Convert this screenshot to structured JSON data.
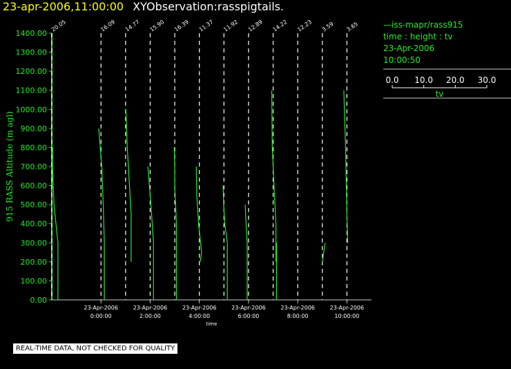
{
  "header": {
    "timestamp": "23-apr-2006,11:00:00",
    "title": "XYObservation:rasspigtails."
  },
  "legend": {
    "series": "iss-mapr/rass915",
    "desc": "time : height : tv",
    "date": "23-Apr-2006",
    "time": "10:00:50",
    "scale_ticks": [
      "0.0",
      "10.0",
      "20.0",
      "30.0"
    ],
    "scale_label": "tv"
  },
  "footer": {
    "notice": "REAL-TIME DATA, NOT CHECKED FOR QUALITY"
  },
  "colors": {
    "trace": "#22ee22",
    "axis": "#22ee22",
    "ref": "#ffffff",
    "header_ts": "#ffff00"
  },
  "chart_data": {
    "type": "line",
    "ylabel": "915 RASS Altitude (m agl)",
    "xlabel": "time",
    "ylim": [
      0,
      1400
    ],
    "yticks": [
      "0.00",
      "100.00",
      "200.00",
      "300.00",
      "400.00",
      "500.00",
      "600.00",
      "700.00",
      "800.00",
      "900.00",
      "1000.00",
      "1100.00",
      "1200.00",
      "1300.00",
      "1400.00"
    ],
    "x_start_hour": -2.0,
    "x_end_hour": 11.0,
    "xticks": [
      {
        "hour": 0,
        "date": "23-Apr-2006",
        "time": "0:00:00"
      },
      {
        "hour": 2,
        "date": "23-Apr-2006",
        "time": "2:00:00"
      },
      {
        "hour": 4,
        "date": "23-Apr-2006",
        "time": "4:00:00"
      },
      {
        "hour": 6,
        "date": "23-Apr-2006",
        "time": "6:00:00"
      },
      {
        "hour": 8,
        "date": "23-Apr-2006",
        "time": "8:00:00"
      },
      {
        "hour": 10,
        "date": "23-Apr-2006",
        "time": "10:00:00"
      }
    ],
    "profiles": [
      {
        "base_hour": -2.0,
        "label": "20.05",
        "points": [
          [
            0.3,
            800
          ],
          [
            0.25,
            700
          ],
          [
            0.8,
            500
          ],
          [
            2.2,
            300
          ],
          [
            2.2,
            0
          ]
        ]
      },
      {
        "base_hour": 0.0,
        "label": "16.09",
        "points": [
          [
            -0.8,
            900
          ],
          [
            0.3,
            700
          ],
          [
            0.8,
            500
          ],
          [
            1.2,
            300
          ],
          [
            1.2,
            0
          ]
        ]
      },
      {
        "base_hour": 1.0,
        "label": "14.77",
        "points": [
          [
            0.1,
            1000
          ],
          [
            0.6,
            800
          ],
          [
            1.4,
            600
          ],
          [
            2.0,
            450
          ],
          [
            2.0,
            200
          ]
        ]
      },
      {
        "base_hour": 2.0,
        "label": "15.90",
        "points": [
          [
            -0.8,
            700
          ],
          [
            0,
            550
          ],
          [
            0.5,
            450
          ],
          [
            1.2,
            300
          ],
          [
            1.2,
            0
          ]
        ]
      },
      {
        "base_hour": 3.0,
        "label": "16.39",
        "points": [
          [
            -0.2,
            800
          ],
          [
            0,
            700
          ],
          [
            0,
            600
          ],
          [
            0.6,
            400
          ],
          [
            0.6,
            300
          ],
          [
            0.6,
            0
          ]
        ]
      },
      {
        "base_hour": 4.0,
        "label": "11.37",
        "points": [
          [
            -1.1,
            700
          ],
          [
            -0.9,
            550
          ],
          [
            -0.3,
            400
          ],
          [
            0.8,
            250
          ],
          [
            0.3,
            200
          ]
        ]
      },
      {
        "base_hour": 5.0,
        "label": "11.92",
        "points": [
          [
            -0.3,
            600
          ],
          [
            -0.1,
            500
          ],
          [
            0.3,
            400
          ],
          [
            1.2,
            300
          ],
          [
            1.2,
            0
          ]
        ]
      },
      {
        "base_hour": 6.0,
        "label": "12.89",
        "points": [
          [
            -1.2,
            500
          ],
          [
            -0.9,
            400
          ],
          [
            -0.5,
            300
          ],
          [
            -0.5,
            0
          ]
        ]
      },
      {
        "base_hour": 7.0,
        "label": "14.22",
        "points": [
          [
            -0.5,
            1100
          ],
          [
            -0.3,
            800
          ],
          [
            0.3,
            600
          ],
          [
            1.0,
            400
          ],
          [
            1.0,
            200
          ],
          [
            1.2,
            300
          ],
          [
            1.2,
            0
          ]
        ]
      },
      {
        "base_hour": 8.0,
        "label": "12.23",
        "points": [
          [
            0.8,
            0
          ]
        ]
      },
      {
        "base_hour": 9.0,
        "label": "3.59",
        "points": [
          [
            0,
            200
          ],
          [
            1.0,
            300
          ]
        ]
      },
      {
        "base_hour": 10.0,
        "label": "3.65",
        "points": [
          [
            -1.1,
            1100
          ],
          [
            -0.5,
            800
          ],
          [
            0,
            450
          ],
          [
            0.3,
            300
          ]
        ]
      }
    ],
    "grid": false,
    "legend_position": "top-right"
  }
}
